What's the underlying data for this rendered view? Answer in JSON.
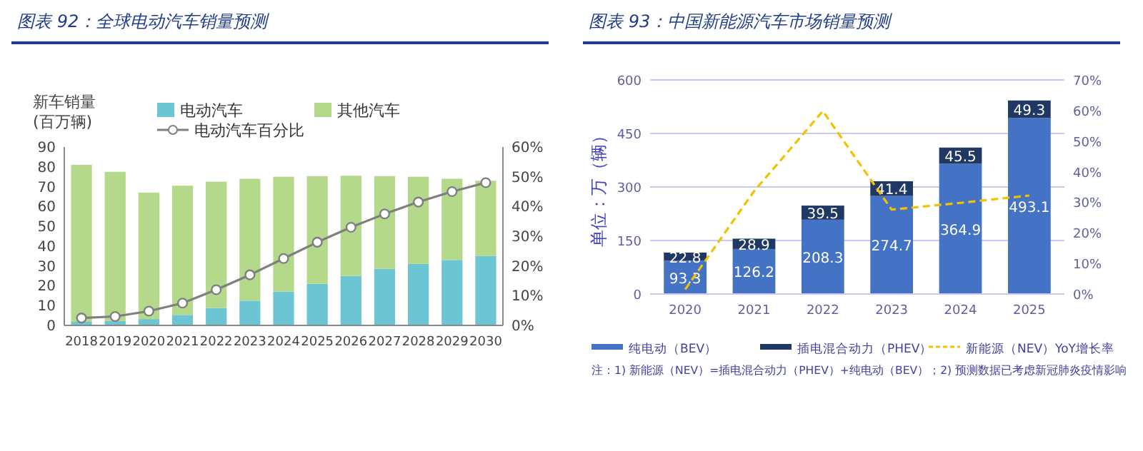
{
  "chart_data": [
    {
      "type": "bar",
      "title": "图表 92：全球电动汽车销量预测",
      "ylabel": "新车销量\n(百万辆)",
      "stacked": true,
      "legend": "top",
      "grid": false,
      "categories": [
        "2018",
        "2019",
        "2020",
        "2021",
        "2022",
        "2023",
        "2024",
        "2025",
        "2026",
        "2027",
        "2028",
        "2029",
        "2030"
      ],
      "series": [
        {
          "name": "电动汽车",
          "color": "#6cc5d3",
          "values": [
            1.8,
            2.2,
            3.2,
            5.3,
            8.8,
            12.5,
            17,
            21,
            25,
            28.5,
            31,
            33,
            35
          ]
        },
        {
          "name": "其他汽车",
          "color": "#b5d98a",
          "values": [
            79.2,
            75.3,
            63.8,
            65.2,
            63.7,
            61.5,
            58,
            54.3,
            50.5,
            46.8,
            44,
            41,
            38
          ]
        },
        {
          "name": "电动汽车百分比",
          "type": "line",
          "axis": "y2",
          "color": "#7f7f7f",
          "marker": "circle",
          "line_style": "solid",
          "values": [
            2.5,
            3,
            4.8,
            7.5,
            12,
            17,
            22.5,
            28,
            33,
            37.5,
            41.5,
            45,
            48
          ]
        }
      ],
      "ylim": [
        0,
        90
      ],
      "yticks": [
        0,
        10,
        20,
        30,
        40,
        50,
        60,
        70,
        80,
        90
      ],
      "y2lim": [
        0,
        60
      ],
      "y2ticks": [
        {
          "value": 0,
          "label": "0%"
        },
        {
          "value": 10,
          "label": "10%"
        },
        {
          "value": 20,
          "label": "20%"
        },
        {
          "value": 30,
          "label": "30%"
        },
        {
          "value": 40,
          "label": "40%"
        },
        {
          "value": 50,
          "label": "50%"
        },
        {
          "value": 60,
          "label": "60%"
        }
      ]
    },
    {
      "type": "bar",
      "title": "图表 93：中国新能源汽车市场销量预测",
      "ylabel": "单位：万（辆）",
      "stacked": true,
      "legend": "bottom",
      "grid": "y",
      "categories": [
        "2020",
        "2021",
        "2022",
        "2023",
        "2024",
        "2025"
      ],
      "series": [
        {
          "name": "纯电动（BEV）",
          "color": "#4472c4",
          "values": [
            93.3,
            126.2,
            208.3,
            274.7,
            364.9,
            493.1
          ],
          "value_labels": [
            "93.3",
            "126.2",
            "208.3",
            "274.7",
            "364.9",
            "493.1"
          ]
        },
        {
          "name": "插电混合动力（PHEV）",
          "color": "#1f3864",
          "values": [
            22.8,
            28.9,
            39.5,
            41.4,
            45.5,
            49.3
          ],
          "value_labels": [
            "22.8",
            "28.9",
            "39.5",
            "41.4",
            "45.5",
            "49.3"
          ]
        },
        {
          "name": "新能源（NEV）YoY增长率",
          "type": "line",
          "axis": "y2",
          "color": "#f2c200",
          "marker": "none",
          "line_style": "dashed",
          "values": [
            1.5,
            33.6,
            59.8,
            27.6,
            29.8,
            32.2
          ]
        }
      ],
      "ylim": [
        0,
        600
      ],
      "yticks": [
        0,
        150,
        300,
        450,
        600
      ],
      "y2lim": [
        0,
        70
      ],
      "y2ticks": [
        {
          "value": 0,
          "label": "0%"
        },
        {
          "value": 10,
          "label": "10%"
        },
        {
          "value": 20,
          "label": "20%"
        },
        {
          "value": 30,
          "label": "30%"
        },
        {
          "value": 40,
          "label": "40%"
        },
        {
          "value": 50,
          "label": "50%"
        },
        {
          "value": 60,
          "label": "60%"
        },
        {
          "value": 70,
          "label": "70%"
        }
      ],
      "annotations": [
        "注：1) 新能源（NEV）=插电混合动力（PHEV）+纯电动（BEV）；2) 预测数据已考虑新冠肺炎疫情影响"
      ]
    }
  ]
}
